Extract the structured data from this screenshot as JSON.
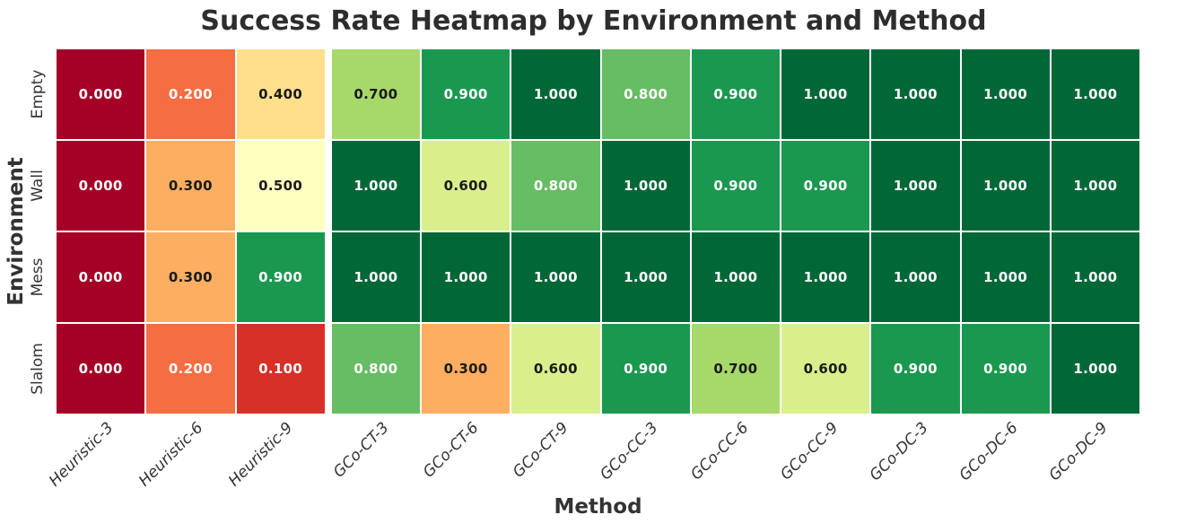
{
  "chart_data": {
    "type": "heatmap",
    "title": "Success Rate Heatmap by Environment and Method",
    "xlabel": "Method",
    "ylabel": "Environment",
    "columns": [
      "Heuristic-3",
      "Heuristic-6",
      "Heuristic-9",
      "GCo-CT-3",
      "GCo-CT-6",
      "GCo-CT-9",
      "GCo-CC-3",
      "GCo-CC-6",
      "GCo-CC-9",
      "GCo-DC-3",
      "GCo-DC-6",
      "GCo-DC-9"
    ],
    "rows": [
      "Empty",
      "Wall",
      "Mess",
      "Slalom"
    ],
    "values": [
      [
        0.0,
        0.2,
        0.4,
        0.7,
        0.9,
        1.0,
        0.8,
        0.9,
        1.0,
        1.0,
        1.0,
        1.0
      ],
      [
        0.0,
        0.3,
        0.5,
        1.0,
        0.6,
        0.8,
        1.0,
        0.9,
        0.9,
        1.0,
        1.0,
        1.0
      ],
      [
        0.0,
        0.3,
        0.9,
        1.0,
        1.0,
        1.0,
        1.0,
        1.0,
        1.0,
        1.0,
        1.0,
        1.0
      ],
      [
        0.0,
        0.2,
        0.1,
        0.8,
        0.3,
        0.6,
        0.9,
        0.7,
        0.6,
        0.9,
        0.9,
        1.0
      ]
    ],
    "value_decimals": 3,
    "value_range": [
      0,
      1
    ],
    "colormap": "RdYlGn",
    "color_stops": [
      "#a50026",
      "#d73027",
      "#f46d43",
      "#fdae61",
      "#fee08b",
      "#ffffbf",
      "#d9ef8b",
      "#a6d96a",
      "#66bd63",
      "#1a9850",
      "#006837"
    ],
    "cell_text_light": "#ffffff",
    "cell_text_dark": "#1a1a1a",
    "light_text_low_threshold": 0.2,
    "light_text_high_threshold": 0.8,
    "grid_line_color": "#ffffff",
    "group_separator_before_column": 3,
    "legend": "none",
    "axis_text_color": "#333333",
    "title_color": "#2d2d2d",
    "background": "#ffffff"
  }
}
